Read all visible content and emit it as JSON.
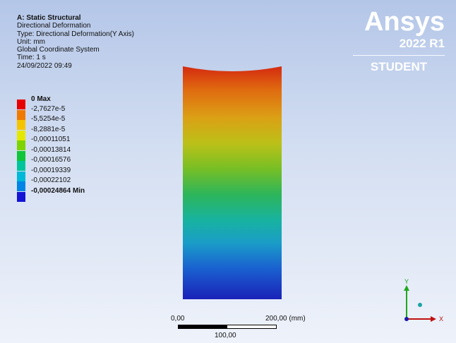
{
  "info": {
    "title": "A: Static Structural",
    "line1": "Directional Deformation",
    "line2": "Type: Directional Deformation(Y Axis)",
    "line3": "Unit: mm",
    "line4": "Global Coordinate System",
    "line5": "Time: 1 s",
    "line6": "24/09/2022 09:49"
  },
  "legend": {
    "entries": [
      {
        "label": "0 Max",
        "color": "#e80000",
        "bold": true
      },
      {
        "label": "-2,7627e-5",
        "color": "#f07a00"
      },
      {
        "label": "-5,5254e-5",
        "color": "#f5c400"
      },
      {
        "label": "-8,2881e-5",
        "color": "#e4e800"
      },
      {
        "label": "-0,00011051",
        "color": "#7ed400"
      },
      {
        "label": "-0,00013814",
        "color": "#10c53a"
      },
      {
        "label": "-0,00016576",
        "color": "#00c49c"
      },
      {
        "label": "-0,00019339",
        "color": "#00b8d8"
      },
      {
        "label": "-0,00022102",
        "color": "#0084e6"
      },
      {
        "label": "-0,00024864 Min",
        "color": "#1414d6",
        "bold": true
      }
    ]
  },
  "brand": {
    "name": "Ansys",
    "version": "2022 R1",
    "edition": "STUDENT"
  },
  "scale_bar": {
    "start": "0,00",
    "end": "200,00 (mm)",
    "mid": "100,00"
  },
  "triad": {
    "x_label": "X",
    "y_label": "Y"
  }
}
